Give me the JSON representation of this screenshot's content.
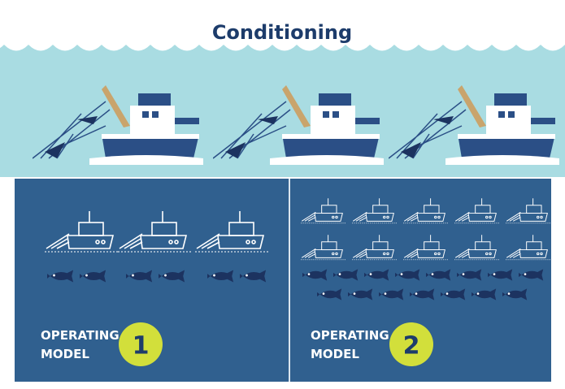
{
  "title": "Conditioning",
  "panels": [
    {
      "label_lines": [
        "OPERATING",
        "MODEL"
      ],
      "number": "1"
    },
    {
      "label_lines": [
        "OPERATING",
        "MODEL"
      ],
      "number": "2"
    }
  ]
}
